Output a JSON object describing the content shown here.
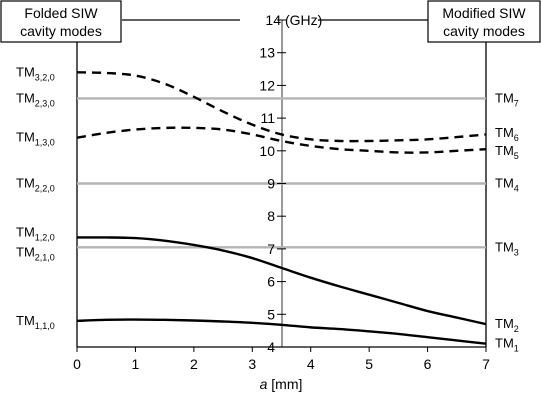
{
  "chart_data": {
    "type": "line",
    "left_header": [
      "Folded SIW",
      "cavity modes"
    ],
    "right_header": [
      "Modified SIW",
      "cavity modes"
    ],
    "center_axis_title": "(GHz)",
    "xlabel_var": "a",
    "xlabel_unit": " [mm]",
    "xlim": [
      0,
      7
    ],
    "ylim": [
      4,
      14
    ],
    "x_ticks": [
      "0",
      "1",
      "2",
      "3",
      "4",
      "5",
      "6",
      "7"
    ],
    "y_ticks": [
      "4",
      "5",
      "6",
      "7",
      "8",
      "9",
      "10",
      "11",
      "12",
      "13",
      "14"
    ],
    "reference_lines": [
      {
        "y": 11.6,
        "left_label": "TM",
        "left_sub": "2,3,0",
        "right_label": "TM",
        "right_sub": "7"
      },
      {
        "y": 9.0,
        "left_label": "TM",
        "left_sub": "2,2,0",
        "right_label": "TM",
        "right_sub": "4"
      },
      {
        "y": 7.05,
        "left_label": "TM",
        "left_sub": "2,1,0",
        "right_label": "TM",
        "right_sub": "3"
      }
    ],
    "series": [
      {
        "style": "dashed",
        "left_label": "TM",
        "left_sub": "3,2,0",
        "right_label": "TM",
        "right_sub": "6",
        "x": [
          0,
          0.5,
          1,
          1.5,
          2,
          2.5,
          3,
          3.5,
          4,
          4.5,
          5,
          5.5,
          6,
          6.5,
          7
        ],
        "y": [
          12.4,
          12.38,
          12.3,
          12.05,
          11.65,
          11.2,
          10.8,
          10.5,
          10.35,
          10.3,
          10.3,
          10.32,
          10.35,
          10.42,
          10.5
        ]
      },
      {
        "style": "dashed",
        "left_label": "TM",
        "left_sub": "1,3,0",
        "right_label": "TM",
        "right_sub": "5",
        "x": [
          0,
          0.5,
          1,
          1.5,
          2,
          2.5,
          3,
          3.5,
          4,
          4.5,
          5,
          5.5,
          6,
          6.5,
          7
        ],
        "y": [
          10.4,
          10.55,
          10.65,
          10.7,
          10.7,
          10.65,
          10.5,
          10.3,
          10.15,
          10.05,
          10.0,
          9.95,
          9.95,
          10.0,
          10.05
        ]
      },
      {
        "style": "solid",
        "left_label": "TM",
        "left_sub": "1,2,0",
        "right_label": "TM",
        "right_sub": "2",
        "x": [
          0,
          0.5,
          1,
          1.5,
          2,
          2.5,
          3,
          3.5,
          4,
          4.5,
          5,
          5.5,
          6,
          6.5,
          7
        ],
        "y": [
          7.35,
          7.35,
          7.33,
          7.25,
          7.12,
          6.95,
          6.72,
          6.42,
          6.12,
          5.85,
          5.6,
          5.35,
          5.1,
          4.9,
          4.7
        ]
      },
      {
        "style": "solid",
        "left_label": "TM",
        "left_sub": "1,1,0",
        "right_label": "TM",
        "right_sub": "1",
        "x": [
          0,
          0.5,
          1,
          1.5,
          2,
          2.5,
          3,
          3.5,
          4,
          4.5,
          5,
          5.5,
          6,
          6.5,
          7
        ],
        "y": [
          4.8,
          4.83,
          4.84,
          4.83,
          4.81,
          4.78,
          4.74,
          4.68,
          4.6,
          4.55,
          4.48,
          4.4,
          4.3,
          4.2,
          4.1
        ]
      }
    ]
  }
}
